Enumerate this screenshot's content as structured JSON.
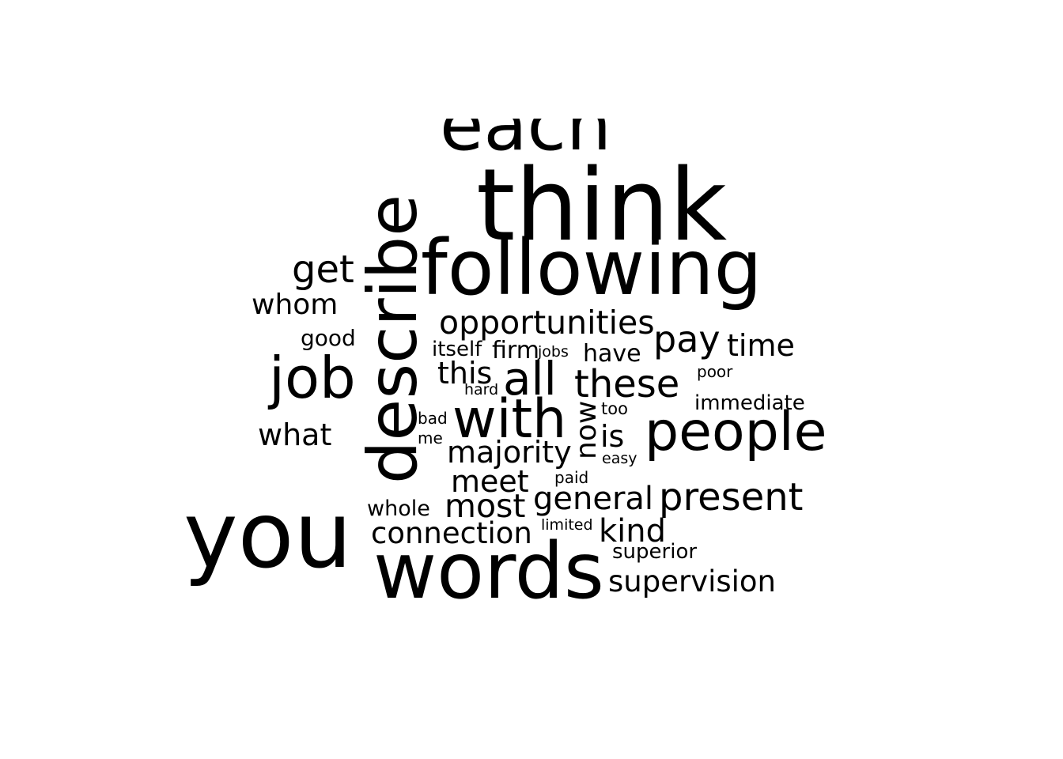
{
  "word_cloud": {
    "color": "#000000",
    "background": "#ffffff",
    "words": [
      {
        "text": "each",
        "rotated": false
      },
      {
        "text": "think",
        "rotated": false
      },
      {
        "text": "describe",
        "rotated": true
      },
      {
        "text": "following",
        "rotated": false
      },
      {
        "text": "get",
        "rotated": false
      },
      {
        "text": "whom",
        "rotated": false
      },
      {
        "text": "good",
        "rotated": false
      },
      {
        "text": "opportunities",
        "rotated": false
      },
      {
        "text": "pay",
        "rotated": false
      },
      {
        "text": "time",
        "rotated": false
      },
      {
        "text": "itself",
        "rotated": false
      },
      {
        "text": "firm",
        "rotated": false
      },
      {
        "text": "jobs",
        "rotated": false
      },
      {
        "text": "have",
        "rotated": false
      },
      {
        "text": "job",
        "rotated": false
      },
      {
        "text": "this",
        "rotated": false
      },
      {
        "text": "all",
        "rotated": false
      },
      {
        "text": "these",
        "rotated": false
      },
      {
        "text": "poor",
        "rotated": false
      },
      {
        "text": "hard",
        "rotated": false
      },
      {
        "text": "immediate",
        "rotated": false
      },
      {
        "text": "bad",
        "rotated": false
      },
      {
        "text": "with",
        "rotated": false
      },
      {
        "text": "now",
        "rotated": true
      },
      {
        "text": "too",
        "rotated": false
      },
      {
        "text": "what",
        "rotated": false
      },
      {
        "text": "me",
        "rotated": false
      },
      {
        "text": "is",
        "rotated": false
      },
      {
        "text": "people",
        "rotated": false
      },
      {
        "text": "majority",
        "rotated": false
      },
      {
        "text": "easy",
        "rotated": false
      },
      {
        "text": "meet",
        "rotated": false
      },
      {
        "text": "paid",
        "rotated": false
      },
      {
        "text": "general",
        "rotated": false
      },
      {
        "text": "present",
        "rotated": false
      },
      {
        "text": "whole",
        "rotated": false
      },
      {
        "text": "most",
        "rotated": false
      },
      {
        "text": "you",
        "rotated": false
      },
      {
        "text": "connection",
        "rotated": false
      },
      {
        "text": "limited",
        "rotated": false
      },
      {
        "text": "kind",
        "rotated": false
      },
      {
        "text": "superior",
        "rotated": false
      },
      {
        "text": "words",
        "rotated": false
      },
      {
        "text": "supervision",
        "rotated": false
      }
    ]
  }
}
